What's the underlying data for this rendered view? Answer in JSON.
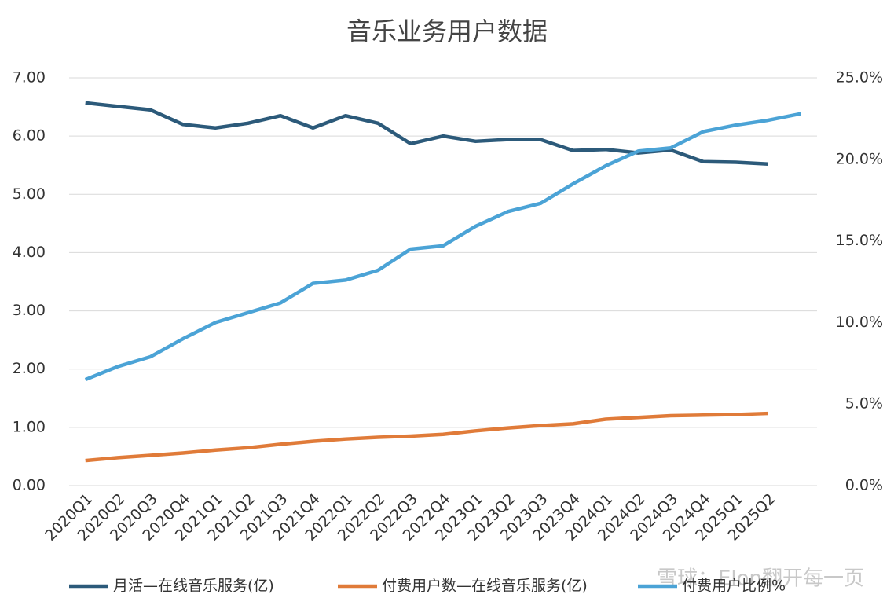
{
  "chart_data": {
    "type": "line",
    "title": "音乐业务用户数据",
    "categories": [
      "2020Q1",
      "2020Q2",
      "2020Q3",
      "2020Q4",
      "2021Q1",
      "2021Q2",
      "2021Q3",
      "2021Q4",
      "2022Q1",
      "2022Q2",
      "2022Q3",
      "2022Q4",
      "2023Q1",
      "2023Q2",
      "2023Q3",
      "2023Q4",
      "2024Q1",
      "2024Q2",
      "2024Q3",
      "2024Q4",
      "2025Q1",
      "2025Q2",
      null
    ],
    "series": [
      {
        "name": "月活—在线音乐服务(亿)",
        "color": "#2c5a7a",
        "values": [
          6.57,
          6.51,
          6.45,
          6.2,
          6.14,
          6.22,
          6.35,
          6.14,
          6.35,
          6.22,
          5.87,
          6.0,
          5.91,
          5.94,
          5.94,
          5.75,
          5.77,
          5.71,
          5.76,
          5.56,
          5.55,
          5.52,
          null
        ]
      },
      {
        "name": "付费用户数—在线音乐服务(亿)",
        "color": "#e07b39",
        "values": [
          0.43,
          0.48,
          0.52,
          0.56,
          0.61,
          0.65,
          0.71,
          0.76,
          0.8,
          0.83,
          0.85,
          0.88,
          0.94,
          0.99,
          1.03,
          1.06,
          1.14,
          1.17,
          1.2,
          1.21,
          1.22,
          1.24,
          null
        ]
      },
      {
        "name": "付费用户比例%",
        "color": "#4ba3d6",
        "axis": "y2",
        "values": [
          6.5,
          7.3,
          7.9,
          9.0,
          10.0,
          10.6,
          11.2,
          12.4,
          12.6,
          13.2,
          14.5,
          14.7,
          15.9,
          16.8,
          17.3,
          18.5,
          19.6,
          20.5,
          20.7,
          21.7,
          22.1,
          22.4,
          22.8
        ]
      }
    ],
    "ylim": [
      0,
      7
    ],
    "yticks": [
      {
        "value": 0,
        "label": "0.00"
      },
      {
        "value": 1,
        "label": "1.00"
      },
      {
        "value": 2,
        "label": "2.00"
      },
      {
        "value": 3,
        "label": "3.00"
      },
      {
        "value": 4,
        "label": "4.00"
      },
      {
        "value": 5,
        "label": "5.00"
      },
      {
        "value": 6,
        "label": "6.00"
      },
      {
        "value": 7,
        "label": "7.00"
      }
    ],
    "y2lim": [
      0,
      25
    ],
    "y2ticks": [
      {
        "value": 0,
        "label": "0.0%"
      },
      {
        "value": 5,
        "label": "5.0%"
      },
      {
        "value": 10,
        "label": "10.0%"
      },
      {
        "value": 15,
        "label": "15.0%"
      },
      {
        "value": 20,
        "label": "20.0%"
      },
      {
        "value": 25,
        "label": "25.0%"
      }
    ],
    "grid": true,
    "legend": "bottom",
    "watermark": "雪球：Elon翻开每一页"
  }
}
